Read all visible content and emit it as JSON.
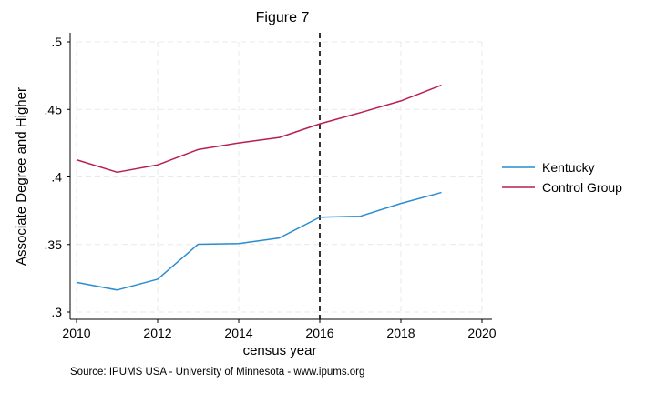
{
  "chart_data": {
    "type": "line",
    "title": "Figure 7",
    "xlabel": "census year",
    "ylabel": "Associate Degree and Higher",
    "note": "Source: IPUMS USA - University of Minnesota - www.ipums.org",
    "xlim": [
      2010,
      2020
    ],
    "ylim": [
      0.3,
      0.5
    ],
    "x_ticks": [
      2010,
      2012,
      2014,
      2016,
      2018,
      2020
    ],
    "x_tick_labels": [
      "2010",
      "2012",
      "2014",
      "2016",
      "2018",
      "2020"
    ],
    "y_ticks": [
      0.3,
      0.35,
      0.4,
      0.45,
      0.5
    ],
    "y_tick_labels": [
      ".3",
      ".35",
      ".4",
      ".45",
      ".5"
    ],
    "grid": true,
    "legend_position": "right",
    "reference_line": {
      "x": 2016,
      "style": "dashed",
      "color": "#000000"
    },
    "x": [
      2010,
      2011,
      2012,
      2013,
      2014,
      2015,
      2016,
      2017,
      2018,
      2019
    ],
    "series": [
      {
        "name": "Kentucky",
        "color": "#2b8cd0",
        "values": [
          0.322,
          0.3163,
          0.3243,
          0.3502,
          0.3507,
          0.3548,
          0.3702,
          0.3709,
          0.3804,
          0.3885
        ]
      },
      {
        "name": "Control Group",
        "color": "#b81e55",
        "values": [
          0.4127,
          0.4035,
          0.4089,
          0.4203,
          0.4252,
          0.4292,
          0.4393,
          0.4476,
          0.4563,
          0.468
        ]
      }
    ]
  }
}
